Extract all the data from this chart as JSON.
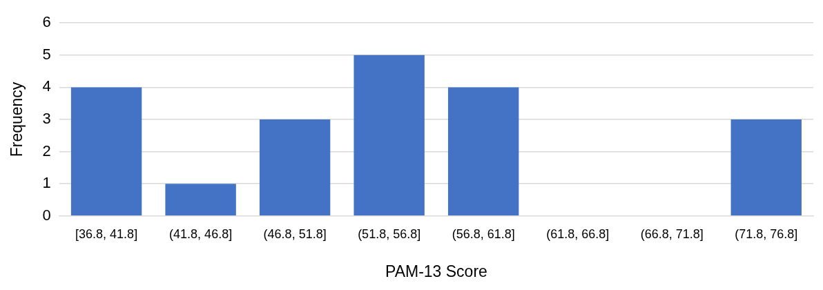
{
  "chart_data": {
    "type": "bar",
    "xlabel": "PAM-13 Score",
    "ylabel": "Frequency",
    "categories": [
      "[36.8, 41.8]",
      "(41.8, 46.8]",
      "(46.8, 51.8]",
      "(51.8, 56.8]",
      "(56.8, 61.8]",
      "(61.8, 66.8]",
      "(66.8, 71.8]",
      "(71.8, 76.8]"
    ],
    "values": [
      4,
      1,
      3,
      5,
      4,
      0,
      0,
      3
    ],
    "color": "#4472c4",
    "ylim": [
      0,
      6
    ],
    "yticks": [
      0,
      1,
      2,
      3,
      4,
      5,
      6
    ],
    "grid": "y",
    "legend": false
  }
}
